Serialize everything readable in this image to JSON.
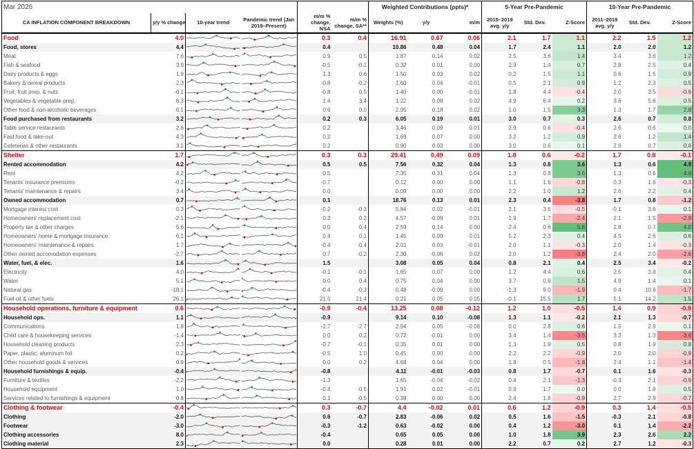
{
  "title": "Mar 2026",
  "headers": {
    "component": "CA INFLATION COMPONENT BREAKDOWN",
    "yy": "y/y % change",
    "trend10": "10-year trend",
    "trend_pandemic": "Pandemic trend (Jan 2019–Present)",
    "mm_nsa": "m/m % change, NSA",
    "mm_sa": "m/m % change, SA**",
    "weighted_group": "Weighted Contributions (ppts)*",
    "weights": "Weights (%)",
    "wc_yy": "y/y",
    "wc_mm": "m/m",
    "five_group": "5-Year Pre-Pandemic",
    "avg5": "2015–2019 avg. y/y",
    "std5": "Std. Dev.",
    "z5": "Z-Score",
    "ten_group": "10-Year Pre-Pandemic",
    "avg10": "2011–2019 avg. y/y",
    "std10": "Std. Dev.",
    "z10": "Z-Score"
  },
  "colors": {
    "group": "#ff0000",
    "positive_z": "#63be7b",
    "negative_z": "#f8696b",
    "sparkline": "#595959",
    "max_marker": "#1a9a5a",
    "min_marker": "#e00000"
  },
  "rows": [
    {
      "name": "Food",
      "t": "g",
      "v": [
        "4.0",
        "0.3",
        "0.4",
        "16.91",
        "0.67",
        "0.06",
        "2.1",
        "1.7",
        "1.1",
        "2.2",
        "1.5",
        "1.2"
      ]
    },
    {
      "name": "Food, stores",
      "t": "s",
      "v": [
        "4.4",
        "0.4",
        "",
        "10.86",
        "0.48",
        "0.04",
        "1.7",
        "2.4",
        "1.1",
        "2.0",
        "2.0",
        "1.2"
      ]
    },
    {
      "name": "Meat",
      "t": "i",
      "v": [
        "7.6",
        "0.9",
        "0.5",
        "1.87",
        "0.14",
        "0.02",
        "2.5",
        "3.6",
        "1.4",
        "3.4",
        "3.6",
        "1.2"
      ]
    },
    {
      "name": "Fish & seafood",
      "t": "i",
      "v": [
        "3.9",
        "-0.5",
        "-0.1",
        "0.32",
        "0.01",
        "0.00",
        "2.9",
        "1.4",
        "0.7",
        "2.8",
        "2.5",
        "0.4"
      ]
    },
    {
      "name": "Dairy products & eggs",
      "t": "i",
      "v": [
        "1.9",
        "1.3",
        "0.6",
        "1.50",
        "0.03",
        "0.02",
        "0.2",
        "1.5",
        "1.1",
        "0.6",
        "1.5",
        "0.9"
      ]
    },
    {
      "name": "Bakery & cereal products",
      "t": "i",
      "v": [
        "2.3",
        "-0.8",
        "-0.2",
        "1.60",
        "0.04",
        "-0.01",
        "0.5",
        "2.1",
        "0.9",
        "1.2",
        "2.3",
        "0.5"
      ]
    },
    {
      "name": "Fruit, fruit prep. & nuts",
      "t": "i",
      "v": [
        "-0.1",
        "-0.8",
        "0.5",
        "1.40",
        "0.00",
        "-0.01",
        "1.8",
        "4.4",
        "-0.4",
        "2.0",
        "3.5",
        "-0.6"
      ]
    },
    {
      "name": "Vegetables & vegetable prep.",
      "t": "i",
      "v": [
        "6.3",
        "1.4",
        "3.4",
        "1.22",
        "0.08",
        "0.02",
        "4.9",
        "6.4",
        "0.2",
        "3.6",
        "5.8",
        "0.5"
      ]
    },
    {
      "name": "Other food & non-alcoholic beverages",
      "t": "i",
      "v": [
        "6.1",
        "0.6",
        "0.0",
        "2.95",
        "0.18",
        "0.02",
        "1.0",
        "1.5",
        "3.3",
        "1.3",
        "1.7",
        "2.8"
      ]
    },
    {
      "name": "Food purchased from restaurants",
      "t": "s",
      "v": [
        "3.2",
        "0.2",
        "0.3",
        "6.05",
        "0.19",
        "0.01",
        "3.0",
        "0.7",
        "0.3",
        "2.6",
        "0.7",
        "0.8"
      ]
    },
    {
      "name": "Table service restaurants",
      "t": "i",
      "v": [
        "2.6",
        "0.2",
        "",
        "3.46",
        "0.09",
        "0.01",
        "2.9",
        "0.6",
        "-0.4",
        "2.6",
        "0.6",
        "0.0"
      ]
    },
    {
      "name": "Fast food & take-out",
      "t": "i",
      "v": [
        "4.3",
        "0.2",
        "",
        "1.69",
        "0.07",
        "0.00",
        "3.2",
        "1.2",
        "0.9",
        "2.6",
        "1.2",
        "1.4"
      ]
    },
    {
      "name": "Cafeterias & other restaurants",
      "t": "i",
      "v": [
        "3.1",
        "0.2",
        "",
        "0.90",
        "0.03",
        "0.00",
        "3.0",
        "0.6",
        "0.1",
        "2.6",
        "0.7",
        "0.6"
      ]
    },
    {
      "name": "Shelter",
      "t": "g",
      "v": [
        "1.7",
        "0.3",
        "0.3",
        "29.41",
        "0.49",
        "0.09",
        "1.8",
        "0.6",
        "-0.2",
        "1.7",
        "0.8",
        "-0.1"
      ]
    },
    {
      "name": "Rented accommodation",
      "t": "s",
      "v": [
        "4.2",
        "0.5",
        "0.5",
        "7.56",
        "0.32",
        "0.04",
        "1.3",
        "0.8",
        "3.6",
        "1.3",
        "0.6",
        "4.9"
      ]
    },
    {
      "name": "Rent",
      "t": "i",
      "v": [
        "4.2",
        "0.5",
        "",
        "7.35",
        "0.31",
        "0.04",
        "1.3",
        "0.8",
        "3.6",
        "1.3",
        "0.6",
        "4.9"
      ]
    },
    {
      "name": "Tenants' insurance premiums",
      "t": "i",
      "v": [
        "-0.2",
        "-0.7",
        "",
        "0.12",
        "0.00",
        "0.00",
        "1.1",
        "1.6",
        "-0.8",
        "0.3",
        "1.6",
        "-0.3"
      ]
    },
    {
      "name": "Tenants' maintenance & repairs",
      "t": "i",
      "v": [
        "3.4",
        "0.0",
        "",
        "0.09",
        "0.00",
        "0.00",
        "2.2",
        "1.0",
        "1.2",
        "2.6",
        "2.2",
        "0.4"
      ]
    },
    {
      "name": "Owned accommodation",
      "t": "s",
      "v": [
        "0.7",
        "0.1",
        "",
        "18.76",
        "0.13",
        "0.01",
        "2.3",
        "0.4",
        "-3.8",
        "1.7",
        "0.8",
        "-1.2"
      ]
    },
    {
      "name": "Mortgage interest cost",
      "t": "i",
      "v": [
        "0.3",
        "-0.2",
        "-0.3",
        "5.84",
        "0.02",
        "-0.01",
        "2.1",
        "3.6",
        "-0.5",
        "-0.1",
        "3.6",
        "0.1"
      ]
    },
    {
      "name": "Homeowners' replacement cost",
      "t": "i",
      "v": [
        "-2.1",
        "0.2",
        "0.2",
        "4.57",
        "-0.09",
        "0.01",
        "1.9",
        "1.7",
        "-2.4",
        "2.1",
        "1.5",
        "-2.9"
      ]
    },
    {
      "name": "Property tax & other charges",
      "t": "i",
      "v": [
        "5.6",
        "0.0",
        "0.4",
        "2.59",
        "0.14",
        "0.00",
        "2.4",
        "0.6",
        "5.6",
        "2.8",
        "0.7",
        "4.0"
      ]
    },
    {
      "name": "Homeowners' home & mortgage insurance",
      "t": "i",
      "v": [
        "6.1",
        "0.4",
        "0.1",
        "1.45",
        "0.09",
        "0.01",
        "5.2",
        "2.3",
        "0.4",
        "4.5",
        "2.6",
        "0.6"
      ]
    },
    {
      "name": "Homeowners' maintenance & repairs",
      "t": "i",
      "v": [
        "1.7",
        "-0.4",
        "-0.4",
        "2.01",
        "0.03",
        "-0.01",
        "2.0",
        "1.1",
        "-0.3",
        "2.0",
        "1.4",
        "-0.3"
      ]
    },
    {
      "name": "Other owned accomodation expenses",
      "t": "i",
      "v": [
        "-2.7",
        "0.7",
        "-0.2",
        "2.30",
        "-0.06",
        "0.02",
        "2.0",
        "1.2",
        "-3.8",
        "2.4",
        "2.0",
        "-2.6"
      ]
    },
    {
      "name": "Water, fuel, & elec.",
      "t": "s",
      "v": [
        "1.6",
        "1.5",
        "",
        "3.08",
        "0.05",
        "0.04",
        "0.8",
        "2.1",
        "0.4",
        "2.5",
        "3.4",
        "-0.2"
      ]
    },
    {
      "name": "Electricity",
      "t": "i",
      "v": [
        "4.0",
        "-0.1",
        "-0.1",
        "1.65",
        "0.07",
        "0.00",
        "1.2",
        "4.4",
        "0.6",
        "2.5",
        "3.8",
        "0.4"
      ]
    },
    {
      "name": "Water",
      "t": "i",
      "v": [
        "5.1",
        "0.0",
        "0.4",
        "0.75",
        "0.04",
        "0.00",
        "3.7",
        "0.9",
        "1.5",
        "4.9",
        "1.4",
        "0.1"
      ]
    },
    {
      "name": "Natural gas",
      "t": "i",
      "v": [
        "-18.1",
        "-0.4",
        "-0.3",
        "0.48",
        "-0.09",
        "0.00",
        "-1.3",
        "9.0",
        "-1.9",
        "0.4",
        "10.6",
        "-1.7"
      ]
    },
    {
      "name": "Fuel oil & other fuels",
      "t": "i",
      "v": [
        "26.1",
        "21.5",
        "21.4",
        "0.21",
        "0.05",
        "0.05",
        "-0.1",
        "15.5",
        "1.7",
        "5.1",
        "14.2",
        "1.5"
      ]
    },
    {
      "name": "Household operations, furniture & equipment",
      "t": "g",
      "v": [
        "0.6",
        "-0.9",
        "-0.4",
        "13.25",
        "0.08",
        "-0.12",
        "1.2",
        "1.0",
        "-0.5",
        "1.4",
        "0.9",
        "-0.9"
      ]
    },
    {
      "name": "Household ops.",
      "t": "s",
      "v": [
        "1.1",
        "-0.9",
        "",
        "9.14",
        "0.10",
        "-0.08",
        "1.3",
        "1.1",
        "-0.2",
        "2.1",
        "1.3",
        "-0.7"
      ]
    },
    {
      "name": "Communications",
      "t": "i",
      "v": [
        "1.8",
        "-2.7",
        "-2.7",
        "2.94",
        "0.05",
        "-0.08",
        "0.0",
        "2.8",
        "0.6",
        "1.5",
        "2.9",
        "0.1"
      ]
    },
    {
      "name": "Child care & housekeeping services",
      "t": "i",
      "v": [
        "-1.4",
        "0.0",
        "0.2",
        "0.72",
        "-0.01",
        "0.00",
        "3.4",
        "1.4",
        "-3.5",
        "3.3",
        "1.3",
        "-3.6"
      ]
    },
    {
      "name": "Household cleaning products",
      "t": "i",
      "v": [
        "2.3",
        "-0.7",
        "-0.1",
        "0.35",
        "0.01",
        "0.00",
        "1.3",
        "1.9",
        "0.5",
        "0.8",
        "1.9",
        "0.8"
      ]
    },
    {
      "name": "Paper, plastic, aluminum foil",
      "t": "i",
      "v": [
        "0.2",
        "-0.5",
        "1.0",
        "0.45",
        "0.00",
        "0.00",
        "2.2",
        "2.2",
        "-0.9",
        "2.0",
        "2.0",
        "-0.9"
      ]
    },
    {
      "name": "Other household goods & services",
      "t": "i",
      "v": [
        "0.9",
        "0.0",
        "0.2",
        "4.68",
        "0.04",
        "0.00",
        "1.8",
        "0.5",
        "-1.8",
        "2.4",
        "1.1",
        "-1.4"
      ]
    },
    {
      "name": "Household furnishings & equip.",
      "t": "s",
      "v": [
        "-0.4",
        "-0.8",
        "",
        "4.11",
        "-0.01",
        "-0.03",
        "0.8",
        "1.7",
        "-0.7",
        "0.1",
        "1.6",
        "-0.3"
      ]
    },
    {
      "name": "Furniture & textiles",
      "t": "i",
      "v": [
        "-2.2",
        "-1.3",
        "",
        "1.65",
        "-0.04",
        "-0.02",
        "0.4",
        "2.1",
        "-1.3",
        "-0.3",
        "2.1",
        "-0.9"
      ]
    },
    {
      "name": "Household equipment",
      "t": "i",
      "v": [
        "1.0",
        "-0.4",
        "-0.5",
        "1.91",
        "0.02",
        "-0.01",
        "0.9",
        "1.7",
        "0.0",
        "0.0",
        "1.8",
        "0.5"
      ]
    },
    {
      "name": "Services related to furnishings & equipment",
      "t": "i",
      "v": [
        "0.8",
        "0.1",
        "-0.5",
        "0.39",
        "0.00",
        "0.00",
        "2.4",
        "1.8",
        "-0.9",
        "2.7",
        "2.9",
        "-0.7"
      ]
    },
    {
      "name": "Clothing & footwear",
      "t": "g",
      "v": [
        "-0.4",
        "0.3",
        "-0.7",
        "4.4",
        "-0.02",
        "0.01",
        "0.6",
        "1.2",
        "-0.9",
        "0.3",
        "1.4",
        "-0.5"
      ]
    },
    {
      "name": "Clothing",
      "t": "s",
      "v": [
        "-2.0",
        "0.6",
        "-0.7",
        "2.83",
        "-0.06",
        "0.02",
        "0.5",
        "1.6",
        "-1.5",
        "-0.3",
        "2.1",
        "-0.8"
      ]
    },
    {
      "name": "Footwear",
      "t": "s",
      "v": [
        "-3.0",
        "-0.3",
        "-1.2",
        "0.63",
        "-0.02",
        "0.00",
        "0.4",
        "1.2",
        "-3.0",
        "0.1",
        "1.4",
        "-2.2"
      ]
    },
    {
      "name": "Clothing accessories",
      "t": "s",
      "v": [
        "8.0",
        "-0.4",
        "",
        "0.65",
        "0.05",
        "0.00",
        "1.0",
        "1.8",
        "3.9",
        "2.3",
        "2.6",
        "2.2"
      ]
    },
    {
      "name": "Clothing material",
      "t": "s",
      "v": [
        "2.3",
        "0.0",
        "",
        "0.28",
        "0.01",
        "0.00",
        "2.2",
        "0.7",
        "0.2",
        "2.7",
        "1.2",
        "-0.3"
      ]
    }
  ]
}
